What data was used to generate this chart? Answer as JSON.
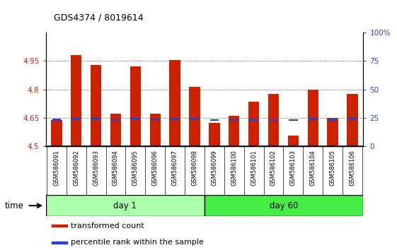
{
  "title": "GDS4374 / 8019614",
  "samples": [
    "GSM586091",
    "GSM586092",
    "GSM586093",
    "GSM586094",
    "GSM586095",
    "GSM586096",
    "GSM586097",
    "GSM586098",
    "GSM586099",
    "GSM586100",
    "GSM586101",
    "GSM586102",
    "GSM586103",
    "GSM586104",
    "GSM586105",
    "GSM586106"
  ],
  "transformed_count": [
    4.64,
    4.98,
    4.93,
    4.67,
    4.92,
    4.67,
    4.955,
    4.815,
    4.625,
    4.66,
    4.735,
    4.775,
    4.555,
    4.8,
    4.65,
    4.775
  ],
  "percentile_values": [
    4.641,
    4.644,
    4.643,
    4.638,
    4.643,
    4.642,
    4.645,
    4.645,
    4.638,
    4.638,
    4.641,
    4.638,
    4.638,
    4.643,
    4.641,
    4.643
  ],
  "day1_samples": 8,
  "day60_samples": 8,
  "ylim_left": [
    4.5,
    5.1
  ],
  "ylim_right": [
    0,
    100
  ],
  "yticks_left": [
    4.5,
    4.65,
    4.8,
    4.95
  ],
  "ytick_labels_left": [
    "4.5",
    "4.65",
    "4.8",
    "4.95"
  ],
  "yticks_right": [
    0,
    25,
    50,
    75,
    100
  ],
  "ytick_labels_right": [
    "0",
    "25",
    "50",
    "75",
    "100%"
  ],
  "bar_color": "#cc2200",
  "percentile_color": "#2244cc",
  "base_value": 4.5,
  "bar_width": 0.55,
  "day1_color": "#aaffaa",
  "day60_color": "#44ee44",
  "day1_label": "day 1",
  "day60_label": "day 60",
  "legend_bar_label": "transformed count",
  "legend_pct_label": "percentile rank within the sample",
  "time_label": "time",
  "xtick_bg_color": "#cccccc",
  "plot_bg_color": "#ffffff",
  "grid_color": "#000000"
}
